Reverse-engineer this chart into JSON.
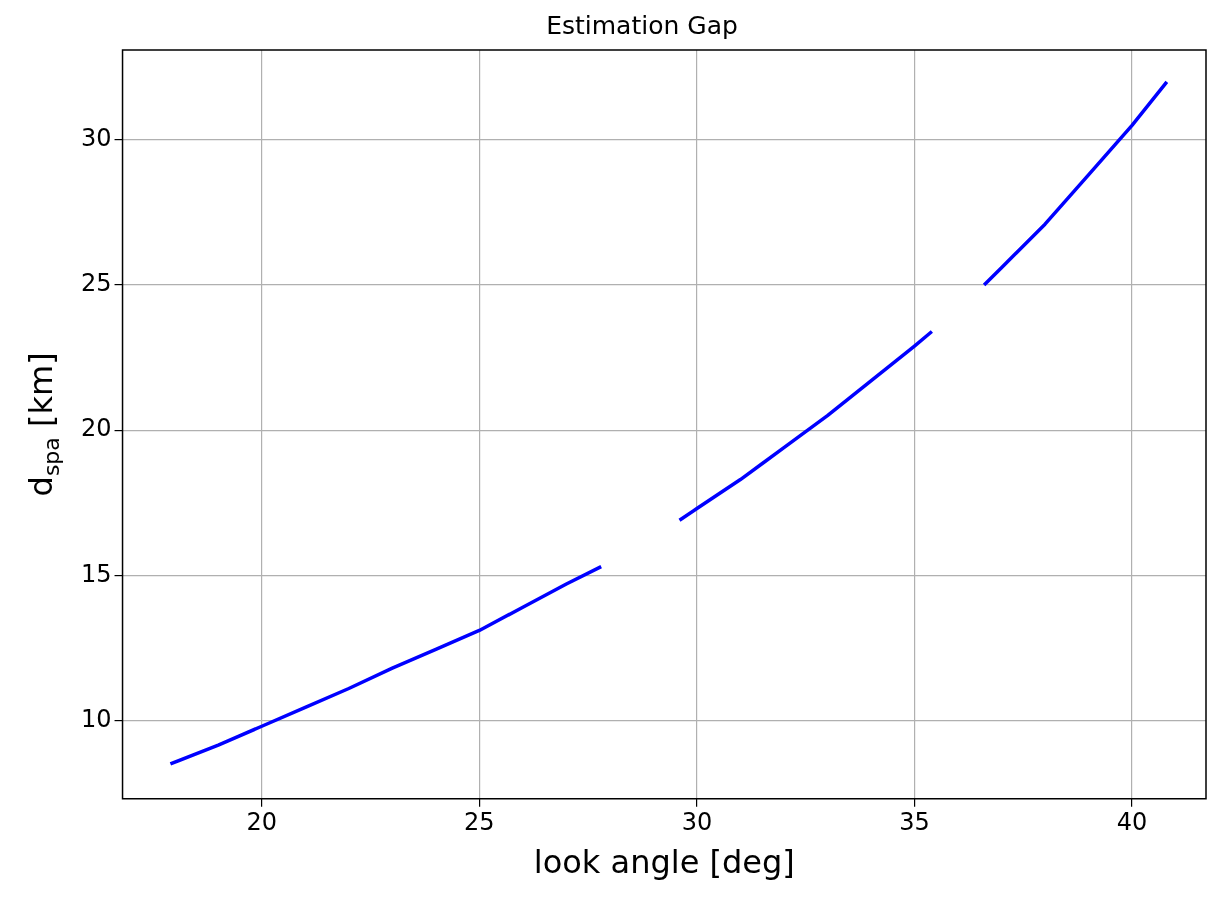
{
  "chart_data": {
    "type": "line",
    "title": "Estimation Gap",
    "xlabel": "look angle [deg]",
    "ylabel": "d$_{spa}$ [km]",
    "xlim": [
      16.8,
      41.7
    ],
    "xticks": [
      20,
      25,
      30,
      35,
      40
    ],
    "ylim": [
      7.3,
      33.1
    ],
    "yticks": [
      10,
      15,
      20,
      25,
      30
    ],
    "grid": true,
    "marker": "none",
    "line_style": "solid",
    "series": [
      {
        "color": "#0000ff",
        "x": [
          17.9,
          19,
          20,
          21,
          22,
          23,
          24,
          25,
          26,
          27,
          27.8,
          28.7,
          29.6,
          30,
          31,
          32,
          33,
          34,
          35,
          35.4,
          36,
          36.6,
          37,
          38,
          39,
          40,
          40.8
        ],
        "values": [
          8.5,
          9.15,
          9.8,
          10.45,
          11.1,
          11.8,
          12.45,
          13.1,
          13.9,
          14.7,
          15.3,
          null,
          16.9,
          17.3,
          18.3,
          19.4,
          20.5,
          21.7,
          22.9,
          23.4,
          null,
          25.0,
          25.6,
          27.1,
          28.8,
          30.5,
          32.0
        ]
      }
    ]
  }
}
